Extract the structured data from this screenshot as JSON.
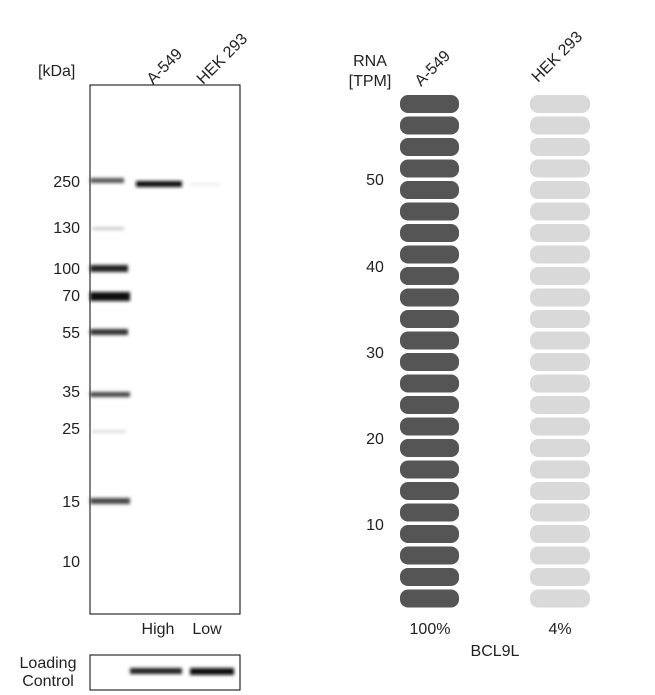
{
  "western_blot": {
    "unit_label": "[kDa]",
    "lanes": [
      "A-549",
      "HEK 293"
    ],
    "markers": [
      "250",
      "130",
      "100",
      "70",
      "55",
      "35",
      "25",
      "15",
      "10"
    ],
    "levels": [
      "High",
      "Low"
    ],
    "loading_control": [
      "Loading",
      "Control"
    ]
  },
  "rna": {
    "axis_label": [
      "RNA",
      "[TPM]"
    ],
    "cell_lines": [
      "A-549",
      "HEK 293"
    ],
    "ticks": [
      "50",
      "40",
      "30",
      "20",
      "10"
    ],
    "percentages": [
      "100%",
      "4%"
    ],
    "gene": "BCL9L"
  }
}
